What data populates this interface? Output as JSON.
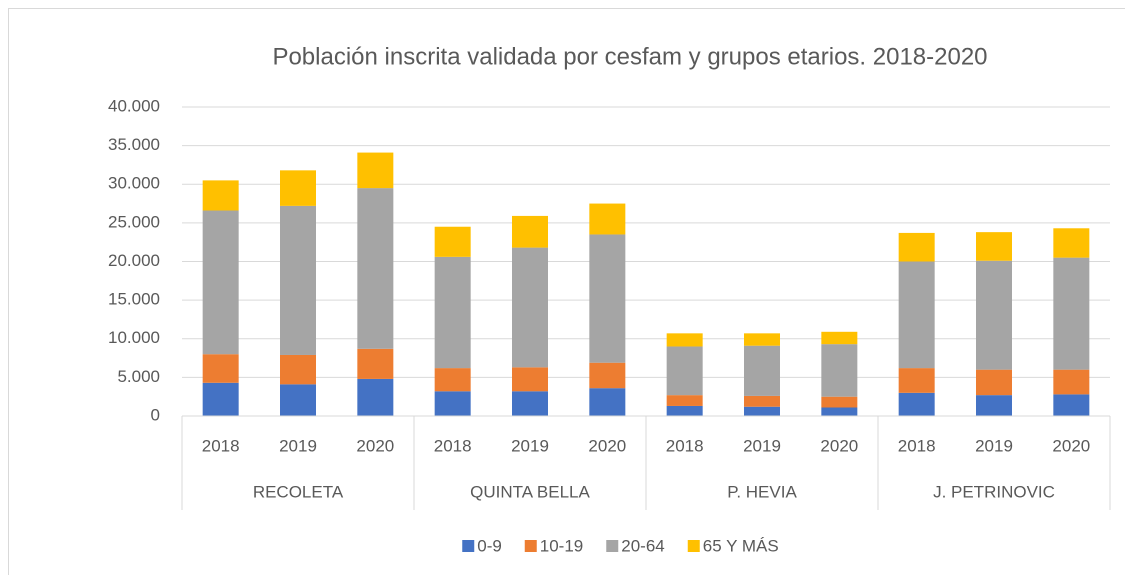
{
  "chart_data": {
    "type": "stacked-bar",
    "title": "Población inscrita validada por cesfam y grupos etarios. 2018-2020",
    "groups": [
      {
        "label": "RECOLETA",
        "categories": [
          "2018",
          "2019",
          "2020"
        ]
      },
      {
        "label": "QUINTA BELLA",
        "categories": [
          "2018",
          "2019",
          "2020"
        ]
      },
      {
        "label": "P. HEVIA",
        "categories": [
          "2018",
          "2019",
          "2020"
        ]
      },
      {
        "label": "J. PETRINOVIC",
        "categories": [
          "2018",
          "2019",
          "2020"
        ]
      }
    ],
    "series": [
      {
        "name": "0-9",
        "color": "#4472c4",
        "values": [
          4300,
          4100,
          4800,
          3200,
          3200,
          3600,
          1300,
          1200,
          1100,
          3000,
          2700,
          2800
        ]
      },
      {
        "name": "10-19",
        "color": "#ed7d31",
        "values": [
          3700,
          3800,
          3900,
          3000,
          3100,
          3300,
          1400,
          1400,
          1400,
          3200,
          3300,
          3200
        ]
      },
      {
        "name": "20-64",
        "color": "#a5a5a5",
        "values": [
          18600,
          19300,
          20800,
          14400,
          15500,
          16600,
          6300,
          6500,
          6800,
          13800,
          14100,
          14500
        ]
      },
      {
        "name": "65 Y MÁS",
        "color": "#ffc000",
        "values": [
          3900,
          4600,
          4600,
          3900,
          4100,
          4000,
          1700,
          1600,
          1600,
          3700,
          3700,
          3800
        ]
      }
    ],
    "ylim": [
      0,
      40000
    ],
    "yticks": [
      0,
      {
        "value": 5000,
        "label": "5.000"
      },
      {
        "value": 10000,
        "label": "10.000"
      },
      {
        "value": 15000,
        "label": "15.000"
      },
      {
        "value": 20000,
        "label": "20.000"
      },
      {
        "value": 25000,
        "label": "25.000"
      },
      {
        "value": 30000,
        "label": "30.000"
      },
      {
        "value": 35000,
        "label": "35.000"
      },
      {
        "value": 40000,
        "label": "40.000"
      }
    ],
    "grid": true,
    "legend": "bottom"
  }
}
